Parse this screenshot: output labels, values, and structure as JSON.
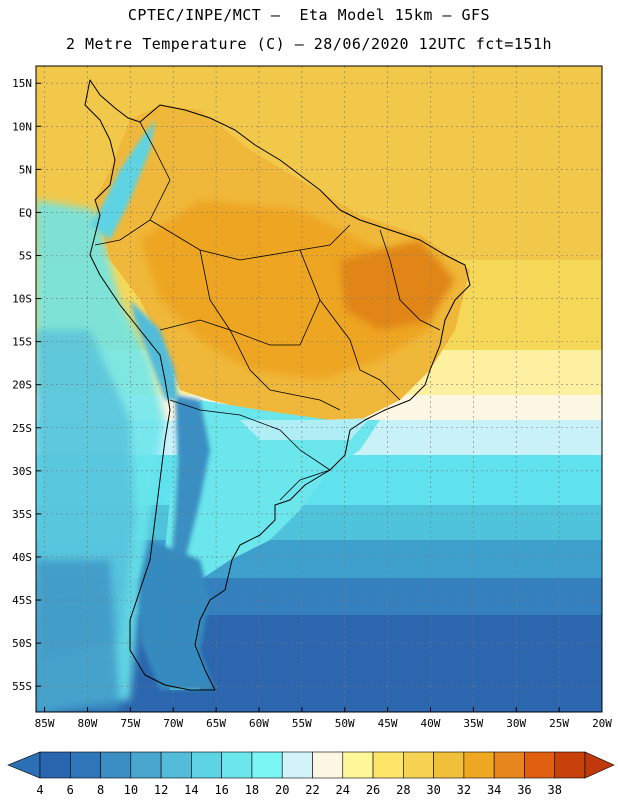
{
  "header": {
    "line1": "CPTEC/INPE/MCT –  Eta Model 15km – GFS",
    "line2": "2 Metre Temperature (C) – 28/06/2020 12UTC fct=151h"
  },
  "map": {
    "title": "2 Metre Temperature (C)",
    "lon_range": [
      -86,
      -20
    ],
    "lat_range": [
      -58,
      17
    ],
    "lon_ticks": [
      "85W",
      "80W",
      "75W",
      "70W",
      "65W",
      "60W",
      "55W",
      "50W",
      "45W",
      "40W",
      "35W",
      "30W",
      "25W",
      "20W"
    ],
    "lon_tick_values": [
      -85,
      -80,
      -75,
      -70,
      -65,
      -60,
      -55,
      -50,
      -45,
      -40,
      -35,
      -30,
      -25,
      -20
    ],
    "lat_ticks": [
      "15N",
      "10N",
      "5N",
      "EQ",
      "5S",
      "10S",
      "15S",
      "20S",
      "25S",
      "30S",
      "35S",
      "40S",
      "45S",
      "50S",
      "55S"
    ],
    "lat_tick_values": [
      15,
      10,
      5,
      0,
      -5,
      -10,
      -15,
      -20,
      -25,
      -30,
      -35,
      -40,
      -45,
      -50,
      -55
    ],
    "grid": true
  },
  "colorbar": {
    "labels": [
      "4",
      "6",
      "8",
      "10",
      "12",
      "14",
      "16",
      "18",
      "20",
      "22",
      "24",
      "26",
      "28",
      "30",
      "32",
      "34",
      "36",
      "38"
    ],
    "colors": [
      "#2a66b0",
      "#2f76b8",
      "#3a8ec2",
      "#48a6cf",
      "#52bcd9",
      "#5dd3e3",
      "#6ae6ec",
      "#7cf5f5",
      "#d2f3fa",
      "#fcf7e2",
      "#fff69a",
      "#fde56a",
      "#f6d352",
      "#f0c03a",
      "#eea821",
      "#e8861e",
      "#e06010",
      "#c8400a"
    ],
    "under_color": "#2d6fb4",
    "over_color": "#c0390c"
  }
}
